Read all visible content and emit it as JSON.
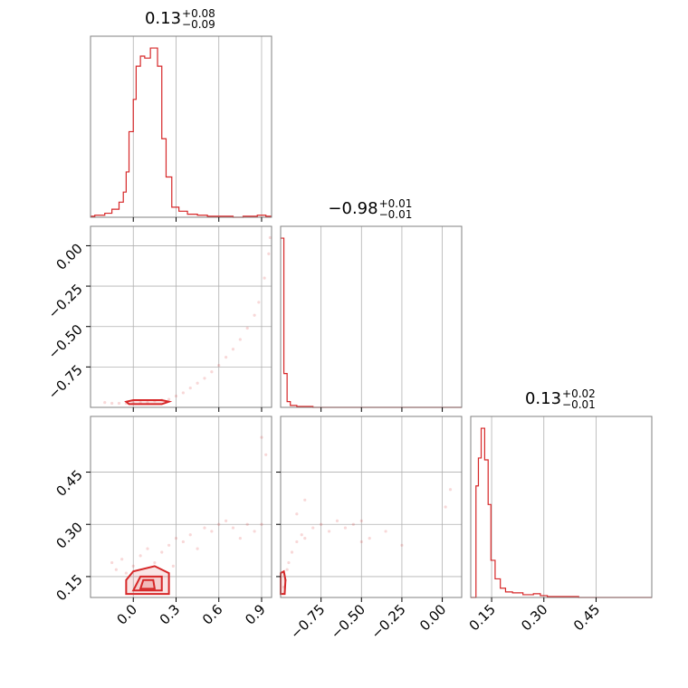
{
  "chart_data": [
    {
      "type": "histogram",
      "variable_index": 0,
      "title_value": "0.13",
      "title_plus": "+0.08",
      "title_minus": "−0.09",
      "xlim": [
        -0.3,
        0.97
      ],
      "ticks": [
        0.0,
        0.3,
        0.6,
        0.9
      ],
      "tick_labels": [
        "0.0",
        "0.3",
        "0.6",
        "0.9"
      ],
      "color": "#d62728",
      "bins": [
        {
          "x0": -0.3,
          "x1": -0.27,
          "count": 1
        },
        {
          "x0": -0.27,
          "x1": -0.2,
          "count": 2
        },
        {
          "x0": -0.2,
          "x1": -0.15,
          "count": 4
        },
        {
          "x0": -0.15,
          "x1": -0.1,
          "count": 8
        },
        {
          "x0": -0.1,
          "x1": -0.07,
          "count": 15
        },
        {
          "x0": -0.07,
          "x1": -0.05,
          "count": 25
        },
        {
          "x0": -0.05,
          "x1": -0.03,
          "count": 45
        },
        {
          "x0": -0.03,
          "x1": 0.0,
          "count": 85
        },
        {
          "x0": 0.0,
          "x1": 0.02,
          "count": 117
        },
        {
          "x0": 0.02,
          "x1": 0.05,
          "count": 150
        },
        {
          "x0": 0.05,
          "x1": 0.08,
          "count": 160
        },
        {
          "x0": 0.08,
          "x1": 0.12,
          "count": 158
        },
        {
          "x0": 0.12,
          "x1": 0.17,
          "count": 168
        },
        {
          "x0": 0.17,
          "x1": 0.2,
          "count": 150
        },
        {
          "x0": 0.2,
          "x1": 0.23,
          "count": 78
        },
        {
          "x0": 0.23,
          "x1": 0.27,
          "count": 40
        },
        {
          "x0": 0.27,
          "x1": 0.32,
          "count": 10
        },
        {
          "x0": 0.32,
          "x1": 0.38,
          "count": 6
        },
        {
          "x0": 0.38,
          "x1": 0.45,
          "count": 3
        },
        {
          "x0": 0.45,
          "x1": 0.52,
          "count": 2
        },
        {
          "x0": 0.52,
          "x1": 0.6,
          "count": 1
        },
        {
          "x0": 0.6,
          "x1": 0.7,
          "count": 1
        },
        {
          "x0": 0.7,
          "x1": 0.77,
          "count": 0
        },
        {
          "x0": 0.77,
          "x1": 0.87,
          "count": 1
        },
        {
          "x0": 0.87,
          "x1": 0.93,
          "count": 2
        },
        {
          "x0": 0.93,
          "x1": 0.97,
          "count": 1
        }
      ],
      "grid": true
    },
    {
      "type": "histogram",
      "variable_index": 1,
      "title_value": "−0.98",
      "title_plus": "+0.01",
      "title_minus": "−0.01",
      "xlim": [
        -1.0,
        0.12
      ],
      "ticks": [
        -0.75,
        -0.5,
        -0.25,
        0.0
      ],
      "tick_labels": [
        "−0.75",
        "−0.50",
        "−0.25",
        "0.00"
      ],
      "color": "#d62728",
      "bins": [
        {
          "x0": -1.0,
          "x1": -0.98,
          "count": 175
        },
        {
          "x0": -0.98,
          "x1": -0.96,
          "count": 35
        },
        {
          "x0": -0.96,
          "x1": -0.94,
          "count": 6
        },
        {
          "x0": -0.94,
          "x1": -0.9,
          "count": 2
        },
        {
          "x0": -0.9,
          "x1": -0.85,
          "count": 1
        },
        {
          "x0": -0.85,
          "x1": -0.8,
          "count": 1
        },
        {
          "x0": -0.8,
          "x1": 0.12,
          "count": 0
        }
      ],
      "grid": true
    },
    {
      "type": "histogram",
      "variable_index": 2,
      "title_value": "0.13",
      "title_plus": "+0.02",
      "title_minus": "−0.01",
      "xlim": [
        0.09,
        0.61
      ],
      "ticks": [
        0.15,
        0.3,
        0.45
      ],
      "tick_labels": [
        "0.15",
        "0.30",
        "0.45"
      ],
      "color": "#d62728",
      "bins": [
        {
          "x0": 0.09,
          "x1": 0.105,
          "count": 0
        },
        {
          "x0": 0.105,
          "x1": 0.112,
          "count": 120
        },
        {
          "x0": 0.112,
          "x1": 0.12,
          "count": 150
        },
        {
          "x0": 0.12,
          "x1": 0.13,
          "count": 182
        },
        {
          "x0": 0.13,
          "x1": 0.14,
          "count": 148
        },
        {
          "x0": 0.14,
          "x1": 0.148,
          "count": 100
        },
        {
          "x0": 0.148,
          "x1": 0.16,
          "count": 40
        },
        {
          "x0": 0.16,
          "x1": 0.175,
          "count": 20
        },
        {
          "x0": 0.175,
          "x1": 0.19,
          "count": 10
        },
        {
          "x0": 0.19,
          "x1": 0.21,
          "count": 6
        },
        {
          "x0": 0.21,
          "x1": 0.24,
          "count": 5
        },
        {
          "x0": 0.24,
          "x1": 0.27,
          "count": 3
        },
        {
          "x0": 0.27,
          "x1": 0.29,
          "count": 4
        },
        {
          "x0": 0.29,
          "x1": 0.31,
          "count": 2
        },
        {
          "x0": 0.31,
          "x1": 0.4,
          "count": 1
        },
        {
          "x0": 0.4,
          "x1": 0.61,
          "count": 0
        }
      ],
      "grid": true
    },
    {
      "type": "scatter",
      "variables": [
        0,
        1
      ],
      "xlim": [
        -0.3,
        0.97
      ],
      "ylim": [
        -1.0,
        0.12
      ],
      "yticks": [
        0.0,
        -0.25,
        -0.5,
        -0.75
      ],
      "ytick_labels": [
        "0.00",
        "−0.25",
        "−0.50",
        "−0.75"
      ],
      "color": "#d62728",
      "points": [
        [
          -0.2,
          -0.97
        ],
        [
          -0.15,
          -0.975
        ],
        [
          -0.1,
          -0.975
        ],
        [
          -0.05,
          -0.975
        ],
        [
          0.0,
          -0.97
        ],
        [
          0.05,
          -0.97
        ],
        [
          0.1,
          -0.97
        ],
        [
          0.15,
          -0.96
        ],
        [
          0.2,
          -0.955
        ],
        [
          0.25,
          -0.95
        ],
        [
          0.3,
          -0.93
        ],
        [
          0.35,
          -0.91
        ],
        [
          0.4,
          -0.88
        ],
        [
          0.45,
          -0.85
        ],
        [
          0.5,
          -0.82
        ],
        [
          0.55,
          -0.78
        ],
        [
          0.6,
          -0.74
        ],
        [
          0.65,
          -0.69
        ],
        [
          0.7,
          -0.64
        ],
        [
          0.75,
          -0.58
        ],
        [
          0.8,
          -0.51
        ],
        [
          0.85,
          -0.43
        ],
        [
          0.88,
          -0.35
        ],
        [
          0.92,
          -0.2
        ],
        [
          0.95,
          -0.05
        ],
        [
          0.96,
          0.05
        ]
      ],
      "contours": [
        [
          [
            -0.03,
            -0.98
          ],
          [
            0.2,
            -0.98
          ],
          [
            0.25,
            -0.965
          ],
          [
            0.2,
            -0.955
          ],
          [
            0.0,
            -0.955
          ],
          [
            -0.05,
            -0.965
          ]
        ]
      ],
      "grid": true
    },
    {
      "type": "scatter",
      "variables": [
        0,
        2
      ],
      "xlim": [
        -0.3,
        0.97
      ],
      "ylim": [
        0.09,
        0.61
      ],
      "xticks": [
        0.0,
        0.3,
        0.6,
        0.9
      ],
      "xtick_labels": [
        "0.0",
        "0.3",
        "0.6",
        "0.9"
      ],
      "yticks": [
        0.15,
        0.3,
        0.45
      ],
      "ytick_labels": [
        "0.15",
        "0.30",
        "0.45"
      ],
      "color": "#d62728",
      "points": [
        [
          -0.15,
          0.19
        ],
        [
          -0.12,
          0.17
        ],
        [
          -0.08,
          0.2
        ],
        [
          -0.05,
          0.16
        ],
        [
          0.0,
          0.18
        ],
        [
          0.05,
          0.21
        ],
        [
          0.1,
          0.23
        ],
        [
          0.15,
          0.19
        ],
        [
          0.2,
          0.22
        ],
        [
          0.25,
          0.24
        ],
        [
          0.3,
          0.26
        ],
        [
          0.35,
          0.25
        ],
        [
          0.4,
          0.27
        ],
        [
          0.45,
          0.23
        ],
        [
          0.5,
          0.29
        ],
        [
          0.55,
          0.28
        ],
        [
          0.6,
          0.3
        ],
        [
          0.65,
          0.31
        ],
        [
          0.7,
          0.29
        ],
        [
          0.75,
          0.26
        ],
        [
          0.8,
          0.3
        ],
        [
          0.85,
          0.28
        ],
        [
          0.9,
          0.3
        ],
        [
          0.93,
          0.5
        ],
        [
          0.9,
          0.55
        ],
        [
          0.28,
          0.18
        ]
      ],
      "contours": [
        [
          [
            -0.05,
            0.1
          ],
          [
            0.25,
            0.1
          ],
          [
            0.25,
            0.16
          ],
          [
            0.15,
            0.18
          ],
          [
            0.0,
            0.165
          ],
          [
            -0.05,
            0.14
          ]
        ],
        [
          [
            0.0,
            0.11
          ],
          [
            0.2,
            0.11
          ],
          [
            0.2,
            0.15
          ],
          [
            0.05,
            0.15
          ]
        ],
        [
          [
            0.05,
            0.115
          ],
          [
            0.15,
            0.115
          ],
          [
            0.14,
            0.14
          ],
          [
            0.07,
            0.14
          ]
        ]
      ],
      "grid": true
    },
    {
      "type": "scatter",
      "variables": [
        1,
        2
      ],
      "xlim": [
        -1.0,
        0.12
      ],
      "ylim": [
        0.09,
        0.61
      ],
      "xticks": [
        -0.75,
        -0.5,
        -0.25,
        0.0
      ],
      "xtick_labels": [
        "−0.75",
        "−0.50",
        "−0.25",
        "0.00"
      ],
      "color": "#d62728",
      "points": [
        [
          -0.98,
          0.12
        ],
        [
          -0.97,
          0.14
        ],
        [
          -0.96,
          0.17
        ],
        [
          -0.95,
          0.19
        ],
        [
          -0.93,
          0.22
        ],
        [
          -0.9,
          0.25
        ],
        [
          -0.87,
          0.27
        ],
        [
          -0.85,
          0.26
        ],
        [
          -0.8,
          0.29
        ],
        [
          -0.75,
          0.3
        ],
        [
          -0.7,
          0.28
        ],
        [
          -0.65,
          0.31
        ],
        [
          -0.6,
          0.29
        ],
        [
          -0.55,
          0.3
        ],
        [
          -0.5,
          0.31
        ],
        [
          -0.45,
          0.26
        ],
        [
          -0.35,
          0.28
        ],
        [
          -0.25,
          0.24
        ],
        [
          0.02,
          0.35
        ],
        [
          0.05,
          0.4
        ],
        [
          -0.85,
          0.37
        ],
        [
          -0.9,
          0.33
        ],
        [
          -0.5,
          0.25
        ]
      ],
      "contours": [
        [
          [
            -1.0,
            0.1
          ],
          [
            -0.975,
            0.1
          ],
          [
            -0.97,
            0.14
          ],
          [
            -0.98,
            0.165
          ],
          [
            -1.0,
            0.16
          ]
        ]
      ],
      "grid": true
    }
  ]
}
